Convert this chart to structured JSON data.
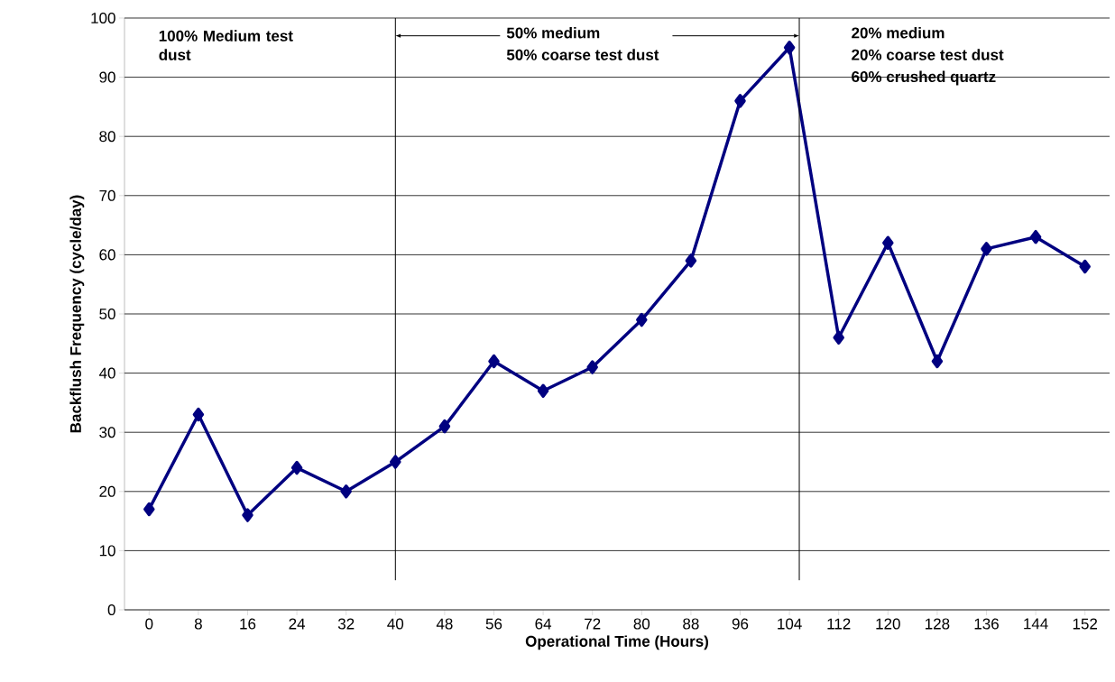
{
  "chart_data": {
    "type": "line",
    "xlabel": "Operational Time (Hours)",
    "ylabel": "Backflush Frequency (cycle/day)",
    "x": [
      0,
      8,
      16,
      24,
      32,
      40,
      48,
      56,
      64,
      72,
      80,
      88,
      96,
      104,
      112,
      120,
      128,
      136,
      144,
      152
    ],
    "series": [
      {
        "color": "#000080",
        "values": [
          17,
          33,
          16,
          24,
          20,
          25,
          31,
          42,
          37,
          41,
          49,
          59,
          86,
          95,
          46,
          62,
          42,
          61,
          63,
          58
        ]
      }
    ],
    "xlim": [
      -4,
      156
    ],
    "xticks": [
      0,
      8,
      16,
      24,
      32,
      40,
      48,
      56,
      64,
      72,
      80,
      88,
      96,
      104,
      112,
      120,
      128,
      136,
      144,
      152
    ],
    "ylim": [
      0,
      100
    ],
    "yticks": [
      0,
      10,
      20,
      30,
      40,
      50,
      60,
      70,
      80,
      90,
      100
    ],
    "grid": "y",
    "marker": "diamond",
    "line_style": "solid",
    "ref_lines": [
      {
        "axis": "x",
        "value": 40,
        "color": "#000000"
      },
      {
        "axis": "x",
        "value": 105.6,
        "color": "#000000"
      }
    ],
    "annotations": [
      "100% Medium test dust",
      {
        "text": "50% medium",
        "x": 40,
        "y": 97
      },
      {
        "text": "50% coarse test dust",
        "x": 105.6,
        "y": 97
      },
      "20% medium",
      "20% coarse test dust",
      "60% crushed quartz"
    ]
  }
}
